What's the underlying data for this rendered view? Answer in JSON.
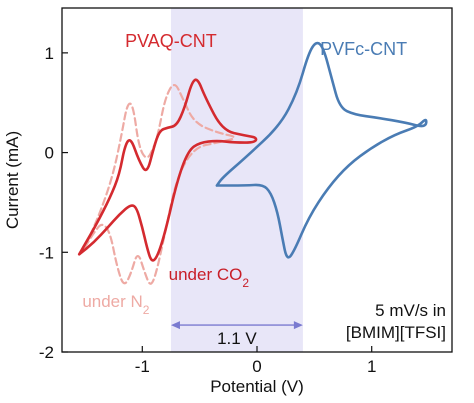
{
  "chart_data": {
    "type": "line",
    "xlabel": "Potential (V)",
    "ylabel": "Current (mA)",
    "xlim": [
      -1.7,
      1.7
    ],
    "ylim": [
      -2,
      1.45
    ],
    "xticks": [
      -1,
      0,
      1
    ],
    "xtick_labels": [
      "-1",
      "0",
      "1"
    ],
    "yticks": [
      -2,
      -1,
      0,
      1
    ],
    "ytick_labels": [
      "-2",
      "-1",
      "0",
      "1"
    ],
    "grid": false,
    "window": {
      "x_range": [
        -0.75,
        0.4
      ],
      "color": "#e8e6f8",
      "label": "1.1 V",
      "arrow_y": -1.73,
      "label_y": -1.86
    },
    "series": [
      {
        "name": "PVAQ-CNT",
        "color": "#d42a2f",
        "style": "solid",
        "points": [
          [
            -1.55,
            -1.02
          ],
          [
            -1.42,
            -0.9
          ],
          [
            -1.3,
            -0.75
          ],
          [
            -1.2,
            -0.62
          ],
          [
            -1.1,
            -0.52
          ],
          [
            -1.05,
            -0.55
          ],
          [
            -1.0,
            -0.75
          ],
          [
            -0.96,
            -0.95
          ],
          [
            -0.92,
            -1.1
          ],
          [
            -0.87,
            -1.05
          ],
          [
            -0.8,
            -0.8
          ],
          [
            -0.7,
            -0.3
          ],
          [
            -0.6,
            0.02
          ],
          [
            -0.5,
            0.1
          ],
          [
            -0.35,
            0.12
          ],
          [
            -0.2,
            0.1
          ],
          [
            -0.02,
            0.1
          ],
          [
            0.0,
            0.15
          ],
          [
            -0.1,
            0.17
          ],
          [
            -0.3,
            0.22
          ],
          [
            -0.45,
            0.55
          ],
          [
            -0.52,
            0.75
          ],
          [
            -0.57,
            0.7
          ],
          [
            -0.63,
            0.45
          ],
          [
            -0.7,
            0.27
          ],
          [
            -0.78,
            0.25
          ],
          [
            -0.85,
            0.22
          ],
          [
            -0.9,
            0.05
          ],
          [
            -0.96,
            -0.22
          ],
          [
            -1.03,
            -0.08
          ],
          [
            -1.1,
            0.15
          ],
          [
            -1.15,
            0.08
          ],
          [
            -1.2,
            -0.22
          ],
          [
            -1.28,
            -0.45
          ],
          [
            -1.4,
            -0.72
          ],
          [
            -1.5,
            -0.92
          ],
          [
            -1.55,
            -1.02
          ]
        ]
      },
      {
        "name": "under N2",
        "color": "#eeaaa4",
        "style": "dashed",
        "points": [
          [
            -1.5,
            -0.95
          ],
          [
            -1.42,
            -0.8
          ],
          [
            -1.35,
            -0.7
          ],
          [
            -1.28,
            -0.8
          ],
          [
            -1.22,
            -1.15
          ],
          [
            -1.16,
            -1.35
          ],
          [
            -1.1,
            -1.22
          ],
          [
            -1.04,
            -0.98
          ],
          [
            -0.98,
            -1.2
          ],
          [
            -0.93,
            -1.35
          ],
          [
            -0.88,
            -1.22
          ],
          [
            -0.8,
            -0.8
          ],
          [
            -0.7,
            -0.25
          ],
          [
            -0.55,
            0.05
          ],
          [
            -0.35,
            0.1
          ],
          [
            -0.15,
            0.15
          ],
          [
            -0.35,
            0.2
          ],
          [
            -0.55,
            0.3
          ],
          [
            -0.65,
            0.55
          ],
          [
            -0.72,
            0.72
          ],
          [
            -0.8,
            0.55
          ],
          [
            -0.86,
            0.2
          ],
          [
            -0.9,
            0.05
          ],
          [
            -0.96,
            -0.08
          ],
          [
            -1.03,
            0.05
          ],
          [
            -1.08,
            0.48
          ],
          [
            -1.13,
            0.5
          ],
          [
            -1.18,
            0.18
          ],
          [
            -1.25,
            -0.2
          ],
          [
            -1.35,
            -0.55
          ],
          [
            -1.45,
            -0.82
          ],
          [
            -1.5,
            -0.95
          ]
        ]
      },
      {
        "name": "PVFc-CNT",
        "color": "#4a7cb4",
        "style": "solid",
        "points": [
          [
            -0.35,
            -0.33
          ],
          [
            -0.1,
            -0.33
          ],
          [
            0.05,
            -0.32
          ],
          [
            0.12,
            -0.4
          ],
          [
            0.18,
            -0.6
          ],
          [
            0.22,
            -0.85
          ],
          [
            0.26,
            -1.08
          ],
          [
            0.32,
            -1.0
          ],
          [
            0.45,
            -0.65
          ],
          [
            0.62,
            -0.35
          ],
          [
            0.8,
            -0.12
          ],
          [
            1.0,
            0.05
          ],
          [
            1.2,
            0.18
          ],
          [
            1.4,
            0.26
          ],
          [
            1.48,
            0.35
          ],
          [
            1.47,
            0.25
          ],
          [
            1.3,
            0.3
          ],
          [
            1.05,
            0.35
          ],
          [
            0.85,
            0.38
          ],
          [
            0.72,
            0.45
          ],
          [
            0.65,
            0.75
          ],
          [
            0.58,
            1.05
          ],
          [
            0.52,
            1.12
          ],
          [
            0.45,
            1.0
          ],
          [
            0.35,
            0.6
          ],
          [
            0.2,
            0.27
          ],
          [
            -0.1,
            -0.05
          ],
          [
            -0.3,
            -0.25
          ],
          [
            -0.35,
            -0.33
          ]
        ]
      }
    ],
    "annotations": [
      {
        "text": "PVAQ-CNT",
        "x": -0.75,
        "y": 1.06,
        "color": "#d42a2f",
        "key": "pvaq"
      },
      {
        "text": "PVFc-CNT",
        "x": 0.93,
        "y": 0.98,
        "color": "#4a7cb4",
        "key": "pvfc"
      },
      {
        "text": "under CO",
        "sub": "2",
        "x": -0.42,
        "y": -1.28,
        "color": "#c81e28",
        "key": "co2"
      },
      {
        "text": "under N",
        "sub": "2",
        "x": -1.23,
        "y": -1.55,
        "color": "#eeaaa4",
        "key": "n2"
      }
    ],
    "textbox": [
      "5 mV/s in",
      "[BMIM][TFSI]"
    ]
  }
}
